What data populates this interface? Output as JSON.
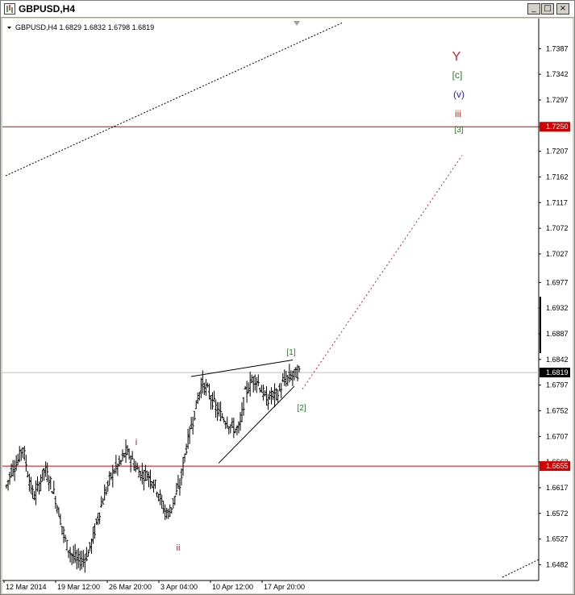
{
  "window": {
    "title": "GBPUSD,H4",
    "minimize_label": "_",
    "restore_label": "□",
    "close_label": "×"
  },
  "chart_data": {
    "type": "candlestick",
    "symbol": "GBPUSD",
    "timeframe": "H4",
    "info_line": "GBPUSD,H4  1.6829 1.6832 1.6798 1.6819",
    "current_price": "1.6819",
    "ylim": [
      1.646,
      1.742
    ],
    "y_ticks": [
      "1.7387",
      "1.7342",
      "1.7297",
      "1.7250",
      "1.7207",
      "1.7162",
      "1.7117",
      "1.7072",
      "1.7027",
      "1.6977",
      "1.6932",
      "1.6887",
      "1.6842",
      "1.6797",
      "1.6752",
      "1.6707",
      "1.6662",
      "1.6617",
      "1.6572",
      "1.6527",
      "1.6482"
    ],
    "x_ticks": [
      "12 Mar 2014",
      "19 Mar 12:00",
      "26 Mar 20:00",
      "3 Apr 04:00",
      "10 Apr 12:00",
      "17 Apr 20:00"
    ],
    "price_path": [
      1.662,
      1.665,
      1.666,
      1.669,
      1.664,
      1.66,
      1.662,
      1.665,
      1.663,
      1.66,
      1.656,
      1.652,
      1.65,
      1.649,
      1.649,
      1.65,
      1.653,
      1.657,
      1.66,
      1.663,
      1.665,
      1.666,
      1.668,
      1.667,
      1.665,
      1.664,
      1.664,
      1.663,
      1.661,
      1.658,
      1.657,
      1.66,
      1.662,
      1.668,
      1.672,
      1.676,
      1.68,
      1.679,
      1.677,
      1.675,
      1.674,
      1.673,
      1.672,
      1.672,
      1.678,
      1.68,
      1.681,
      1.679,
      1.677,
      1.678,
      1.678,
      1.68,
      1.681,
      1.6815,
      1.682
    ],
    "horizontal_lines": [
      {
        "price": 1.725,
        "label": "1.7250",
        "color": "#d40000"
      },
      {
        "price": 1.6655,
        "label": "1.6655",
        "color": "#d40000"
      },
      {
        "price": 1.6819,
        "label": "1.6819",
        "color": "#c0c0c0"
      }
    ],
    "wave_labels": [
      {
        "text": "Y",
        "color": "#e02020",
        "size": 16
      },
      {
        "text": "[c]",
        "color": "#208020",
        "size": 12
      },
      {
        "text": "(v)",
        "color": "#2020d0",
        "size": 12
      },
      {
        "text": "iii",
        "color": "#d02020",
        "size": 12
      },
      {
        "text": "[3]",
        "color": "#208020",
        "size": 10
      },
      {
        "text": "[1]",
        "color": "#208020",
        "size": 10
      },
      {
        "text": "[2]",
        "color": "#208020",
        "size": 10
      },
      {
        "text": "i",
        "color": "#a02020",
        "size": 11
      },
      {
        "text": "ii",
        "color": "#a02020",
        "size": 11
      }
    ],
    "colors": {
      "bars": "#000000",
      "projection": "#e02020",
      "level_line": "#d40000"
    }
  }
}
